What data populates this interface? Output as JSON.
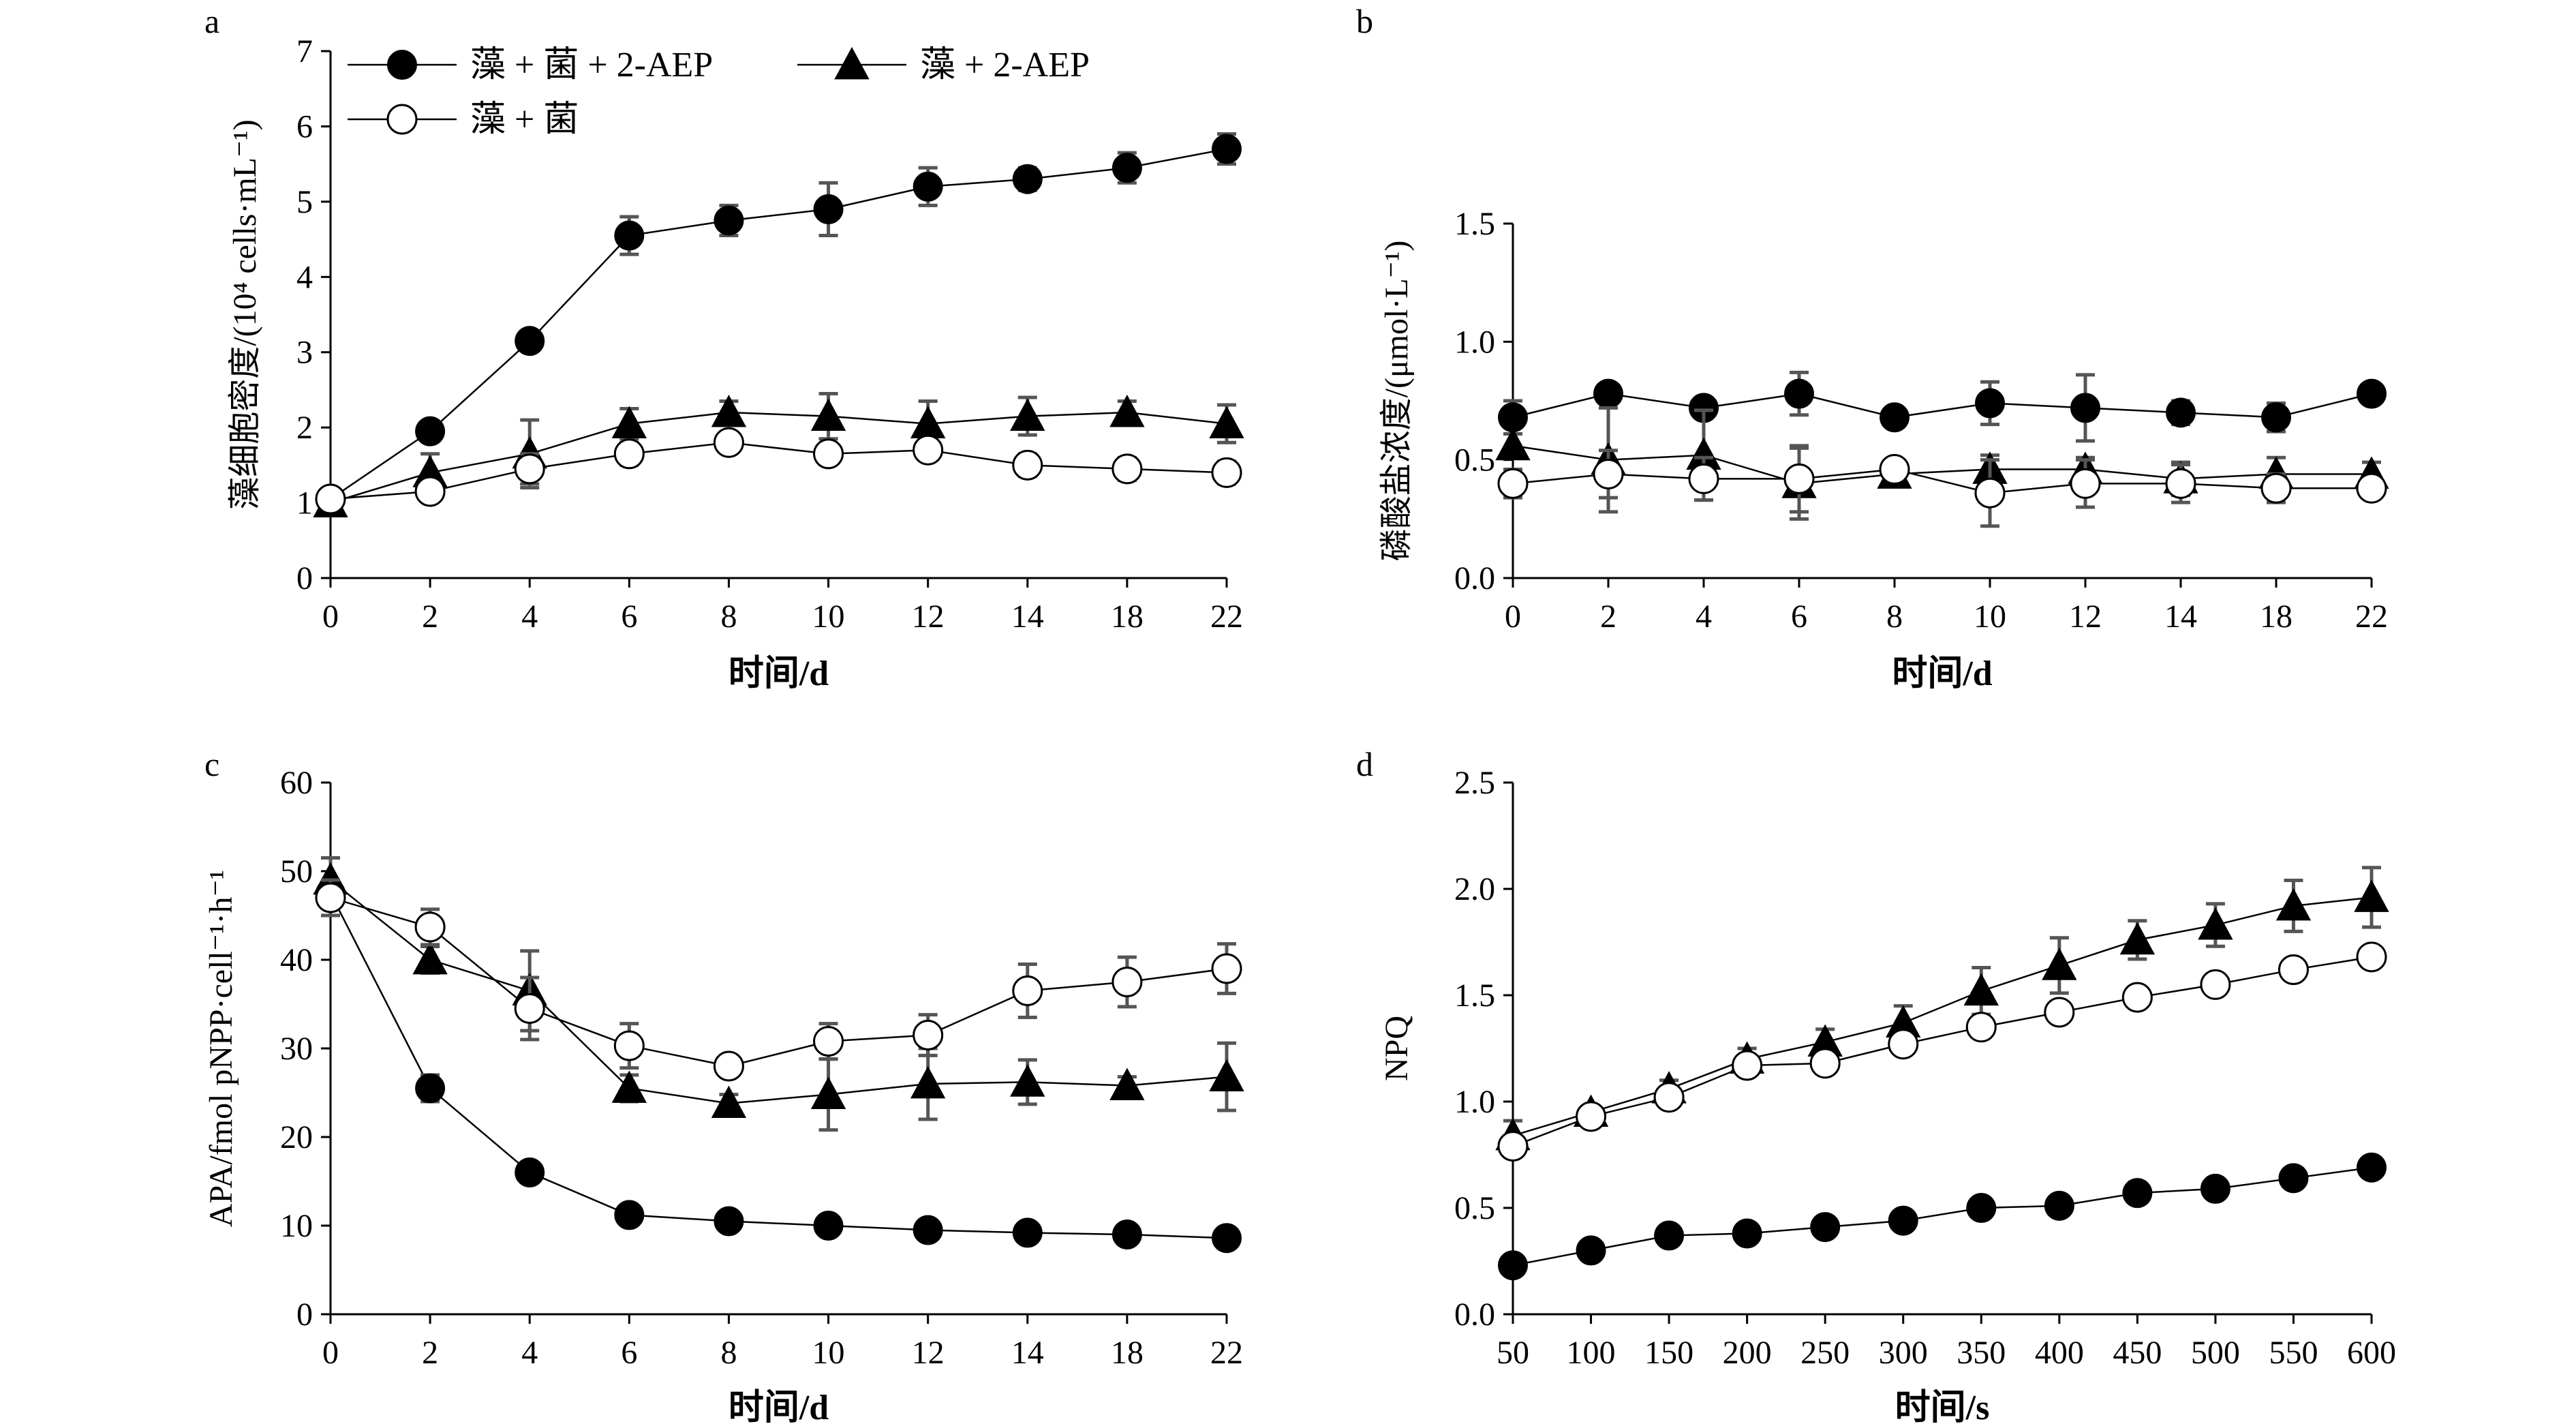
{
  "chart_data": [
    {
      "panel": "a",
      "type": "line",
      "categories": [
        "0",
        "2",
        "4",
        "6",
        "8",
        "10",
        "12",
        "14",
        "18",
        "22"
      ],
      "xlabel": "时间/d",
      "ylabel": "藻细胞密度/(10⁴ cells·mL⁻¹)",
      "ylim": [
        0,
        7
      ],
      "yticks": [
        "0",
        "1",
        "2",
        "3",
        "4",
        "5",
        "6",
        "7"
      ],
      "legend": {
        "placement": "top-left",
        "entries": [
          "藻 + 菌 + 2-AEP",
          "藻 + 2-AEP",
          "藻 + 菌"
        ]
      },
      "series": [
        {
          "name": "藻 + 菌 + 2-AEP",
          "marker": "filled-circle",
          "values": [
            1.05,
            1.95,
            3.15,
            4.55,
            4.75,
            4.9,
            5.2,
            5.3,
            5.45,
            5.7
          ],
          "errors": [
            0.05,
            0.1,
            0.1,
            0.25,
            0.2,
            0.35,
            0.25,
            0.15,
            0.2,
            0.2
          ]
        },
        {
          "name": "藻 + 2-AEP",
          "marker": "filled-triangle",
          "values": [
            1.0,
            1.4,
            1.65,
            2.05,
            2.2,
            2.15,
            2.05,
            2.15,
            2.2,
            2.05
          ],
          "errors": [
            0.05,
            0.25,
            0.45,
            0.2,
            0.15,
            0.3,
            0.3,
            0.25,
            0.15,
            0.25
          ]
        },
        {
          "name": "藻 + 菌",
          "marker": "open-circle",
          "values": [
            1.05,
            1.15,
            1.45,
            1.65,
            1.8,
            1.65,
            1.7,
            1.5,
            1.45,
            1.4
          ],
          "errors": [
            0.05,
            0.1,
            0.2,
            0.15,
            0.1,
            0.1,
            0.1,
            0.15,
            0.15,
            0.15
          ]
        }
      ]
    },
    {
      "panel": "b",
      "type": "line",
      "categories": [
        "0",
        "2",
        "4",
        "6",
        "8",
        "10",
        "12",
        "14",
        "18",
        "22"
      ],
      "xlabel": "时间/d",
      "ylabel": "磷酸盐浓度/(μmol·L⁻¹)",
      "ylim": [
        0,
        1.5
      ],
      "yticks": [
        "0.0",
        "0.5",
        "1.0",
        "1.5"
      ],
      "series": [
        {
          "name": "藻 + 菌 + 2-AEP",
          "marker": "filled-circle",
          "values": [
            0.68,
            0.78,
            0.72,
            0.78,
            0.68,
            0.74,
            0.72,
            0.7,
            0.68,
            0.78
          ],
          "errors": [
            0.07,
            0.03,
            0.03,
            0.09,
            0.02,
            0.09,
            0.14,
            0.05,
            0.06,
            0.02
          ]
        },
        {
          "name": "藻 + 2-AEP",
          "marker": "filled-triangle",
          "values": [
            0.56,
            0.5,
            0.52,
            0.4,
            0.44,
            0.46,
            0.46,
            0.42,
            0.44,
            0.44
          ],
          "errors": [
            0.05,
            0.22,
            0.19,
            0.15,
            0.02,
            0.06,
            0.05,
            0.07,
            0.07,
            0.05
          ]
        },
        {
          "name": "藻 + 菌",
          "marker": "open-circle",
          "values": [
            0.4,
            0.44,
            0.42,
            0.42,
            0.46,
            0.36,
            0.4,
            0.4,
            0.38,
            0.38
          ],
          "errors": [
            0.06,
            0.1,
            0.09,
            0.14,
            0.03,
            0.14,
            0.1,
            0.08,
            0.06,
            0.03
          ]
        }
      ]
    },
    {
      "panel": "c",
      "type": "line",
      "categories": [
        "0",
        "2",
        "4",
        "6",
        "8",
        "10",
        "12",
        "14",
        "18",
        "22"
      ],
      "xlabel": "时间/d",
      "ylabel": "APA/fmol pNPP·cell⁻¹·h⁻¹",
      "ylim": [
        0,
        60
      ],
      "yticks": [
        "0",
        "10",
        "20",
        "30",
        "40",
        "50",
        "60"
      ],
      "series": [
        {
          "name": "藻 + 菌 + 2-AEP",
          "marker": "filled-circle",
          "values": [
            47.5,
            25.5,
            16.0,
            11.2,
            10.5,
            10.0,
            9.5,
            9.2,
            9.0,
            8.6
          ],
          "errors": [
            1.5,
            1.5,
            0.8,
            0.8,
            0.5,
            0.5,
            0.5,
            0.5,
            0.5,
            0.5
          ]
        },
        {
          "name": "藻 + 2-AEP",
          "marker": "filled-triangle",
          "values": [
            49.0,
            40.0,
            36.5,
            25.5,
            23.8,
            24.8,
            26.0,
            26.2,
            25.8,
            26.8
          ],
          "errors": [
            2.5,
            1.5,
            4.5,
            1.5,
            1.0,
            4.0,
            4.0,
            2.5,
            1.0,
            3.8
          ]
        },
        {
          "name": "藻 + 菌",
          "marker": "open-circle",
          "values": [
            47.0,
            43.7,
            34.5,
            30.3,
            28.0,
            30.8,
            31.5,
            36.5,
            37.5,
            39.0
          ],
          "errors": [
            2.0,
            2.0,
            3.5,
            2.5,
            1.0,
            2.0,
            2.3,
            3.0,
            2.8,
            2.8
          ]
        }
      ]
    },
    {
      "panel": "d",
      "type": "line",
      "categories": [
        "50",
        "100",
        "150",
        "200",
        "250",
        "300",
        "350",
        "400",
        "450",
        "500",
        "550",
        "600"
      ],
      "xlabel": "时间/s",
      "ylabel": "NPQ",
      "ylim": [
        0,
        2.5
      ],
      "yticks": [
        "0.0",
        "0.5",
        "1.0",
        "1.5",
        "2.0",
        "2.5"
      ],
      "series": [
        {
          "name": "藻 + 菌 + 2-AEP",
          "marker": "filled-circle",
          "values": [
            0.23,
            0.3,
            0.37,
            0.38,
            0.41,
            0.44,
            0.5,
            0.51,
            0.57,
            0.59,
            0.64,
            0.69
          ],
          "errors": [
            0.01,
            0.01,
            0.01,
            0.01,
            0.01,
            0.01,
            0.01,
            0.01,
            0.01,
            0.01,
            0.01,
            0.01
          ]
        },
        {
          "name": "藻 + 2-AEP",
          "marker": "filled-triangle",
          "values": [
            0.84,
            0.95,
            1.06,
            1.2,
            1.28,
            1.37,
            1.52,
            1.64,
            1.76,
            1.83,
            1.92,
            1.96
          ],
          "errors": [
            0.07,
            0.03,
            0.04,
            0.05,
            0.06,
            0.08,
            0.11,
            0.13,
            0.09,
            0.1,
            0.12,
            0.14
          ]
        },
        {
          "name": "藻 + 菌",
          "marker": "open-circle",
          "values": [
            0.79,
            0.93,
            1.02,
            1.17,
            1.18,
            1.27,
            1.35,
            1.42,
            1.49,
            1.55,
            1.62,
            1.68
          ],
          "errors": [
            0.02,
            0.02,
            0.02,
            0.02,
            0.05,
            0.02,
            0.02,
            0.02,
            0.02,
            0.02,
            0.02,
            0.02
          ]
        }
      ]
    }
  ]
}
